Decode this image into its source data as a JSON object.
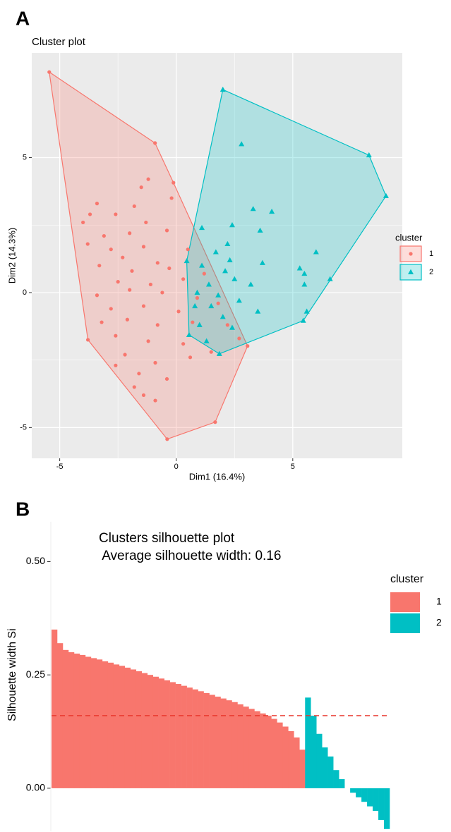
{
  "chart_data": [
    {
      "type": "scatter",
      "panel_label": "A",
      "title": "Cluster plot",
      "x_label": "Dim1 (16.4%)",
      "y_label": "Dim2 (14.3%)",
      "xlim": [
        -6.2,
        9.7
      ],
      "ylim": [
        -6.14,
        8.88
      ],
      "xticks": [
        -5,
        0,
        5
      ],
      "yticks": [
        -5,
        0,
        5
      ],
      "grid": true,
      "legend_title": "cluster",
      "legend": "right",
      "series": [
        {
          "name": "1",
          "color": "#F8766D",
          "shape": "circle",
          "x": [
            -5.45,
            -0.91,
            -0.12,
            3.06,
            1.67,
            -0.39,
            -3.79,
            -1.5,
            -0.2,
            -1.8,
            -3.4,
            -3.7,
            -4.0,
            -2.6,
            -1.3,
            -3.1,
            -2.0,
            -0.4,
            -3.8,
            -2.8,
            -1.4,
            0.5,
            -2.3,
            -0.8,
            -3.3,
            -1.9,
            -0.3,
            1.2,
            -2.5,
            -1.1,
            0.3,
            -3.4,
            -2.0,
            -0.6,
            0.9,
            -2.8,
            -1.4,
            0.1,
            1.8,
            -3.2,
            -2.1,
            -0.8,
            0.7,
            2.2,
            -2.6,
            -1.2,
            0.3,
            1.5,
            -2.2,
            -0.9,
            0.6,
            -2.6,
            -1.6,
            -0.4,
            -1.8,
            -0.9,
            -1.4,
            2.7,
            -1.2
          ],
          "y": [
            8.17,
            5.54,
            4.07,
            -1.98,
            -4.8,
            -5.43,
            -1.75,
            3.9,
            3.5,
            3.2,
            3.3,
            2.9,
            2.6,
            2.9,
            2.6,
            2.1,
            2.2,
            2.3,
            1.8,
            1.6,
            1.7,
            1.6,
            1.3,
            1.1,
            1.0,
            0.8,
            0.9,
            0.7,
            0.4,
            0.3,
            0.5,
            -0.1,
            0.1,
            0.0,
            -0.2,
            -0.6,
            -0.5,
            -0.7,
            -0.4,
            -1.1,
            -1.0,
            -1.2,
            -1.1,
            -1.2,
            -1.6,
            -1.8,
            -1.9,
            -2.2,
            -2.3,
            -2.6,
            -2.4,
            -2.7,
            -3.0,
            -3.2,
            -3.5,
            -4.0,
            -3.8,
            -1.7,
            4.2
          ],
          "hull": {
            "x": [
              -5.45,
              -0.91,
              -0.12,
              3.06,
              1.67,
              -0.39,
              -3.79
            ],
            "y": [
              8.17,
              5.54,
              4.07,
              -1.98,
              -4.8,
              -5.43,
              -1.75
            ]
          }
        },
        {
          "name": "2",
          "color": "#00BFC4",
          "shape": "triangle",
          "x": [
            2.0,
            8.27,
            9.0,
            5.45,
            1.85,
            0.55,
            0.45,
            2.8,
            4.1,
            3.3,
            2.4,
            3.6,
            1.1,
            6.0,
            1.7,
            2.3,
            3.7,
            1.1,
            2.1,
            2.5,
            3.2,
            1.4,
            5.3,
            5.5,
            5.5,
            6.6,
            1.8,
            2.7,
            0.9,
            1.5,
            3.5,
            2.0,
            5.6,
            1.0,
            2.4,
            0.8,
            1.3,
            2.2
          ],
          "y": [
            7.52,
            5.09,
            3.58,
            -1.04,
            -2.27,
            -1.57,
            1.17,
            5.5,
            3.0,
            3.1,
            2.5,
            2.3,
            2.4,
            1.5,
            1.5,
            1.2,
            1.1,
            1.0,
            0.8,
            0.5,
            0.3,
            0.3,
            0.9,
            0.7,
            0.3,
            0.5,
            -0.1,
            -0.3,
            0.0,
            -0.5,
            -0.7,
            -0.9,
            -0.7,
            -1.2,
            -1.3,
            -0.5,
            -1.8,
            1.8
          ],
          "hull": {
            "x": [
              2.0,
              8.27,
              9.0,
              5.45,
              1.85,
              0.55,
              0.45
            ],
            "y": [
              7.52,
              5.09,
              3.58,
              -1.04,
              -2.27,
              -1.57,
              1.17
            ]
          }
        }
      ]
    },
    {
      "type": "bar",
      "panel_label": "B",
      "title": "Clusters silhouette plot",
      "subtitle": " Average silhouette width: 0.16",
      "y_label": "Silhouette width Si",
      "ylim": [
        -0.095,
        0.65
      ],
      "yticks": [
        {
          "value": 0,
          "label": "0.00"
        },
        {
          "value": 0.25,
          "label": "0.25"
        },
        {
          "value": 0.5,
          "label": "0.50"
        }
      ],
      "grid": false,
      "average_line": 0.16,
      "legend_title": "cluster",
      "legend": "right",
      "series": [
        {
          "name": "1",
          "color": "#F8766D",
          "values": [
            0.35,
            0.32,
            0.305,
            0.3,
            0.297,
            0.294,
            0.29,
            0.287,
            0.284,
            0.28,
            0.277,
            0.273,
            0.27,
            0.266,
            0.262,
            0.258,
            0.254,
            0.25,
            0.246,
            0.242,
            0.238,
            0.234,
            0.23,
            0.226,
            0.222,
            0.218,
            0.214,
            0.21,
            0.206,
            0.202,
            0.198,
            0.194,
            0.19,
            0.185,
            0.18,
            0.175,
            0.17,
            0.165,
            0.16,
            0.153,
            0.145,
            0.136,
            0.126,
            0.112,
            0.085
          ]
        },
        {
          "name": "2",
          "color": "#00BFC4",
          "values": [
            0.2,
            0.16,
            0.12,
            0.09,
            0.07,
            0.04,
            0.02,
            0.0,
            -0.01,
            -0.02,
            -0.03,
            -0.04,
            -0.05,
            -0.07,
            -0.09
          ]
        }
      ]
    }
  ]
}
